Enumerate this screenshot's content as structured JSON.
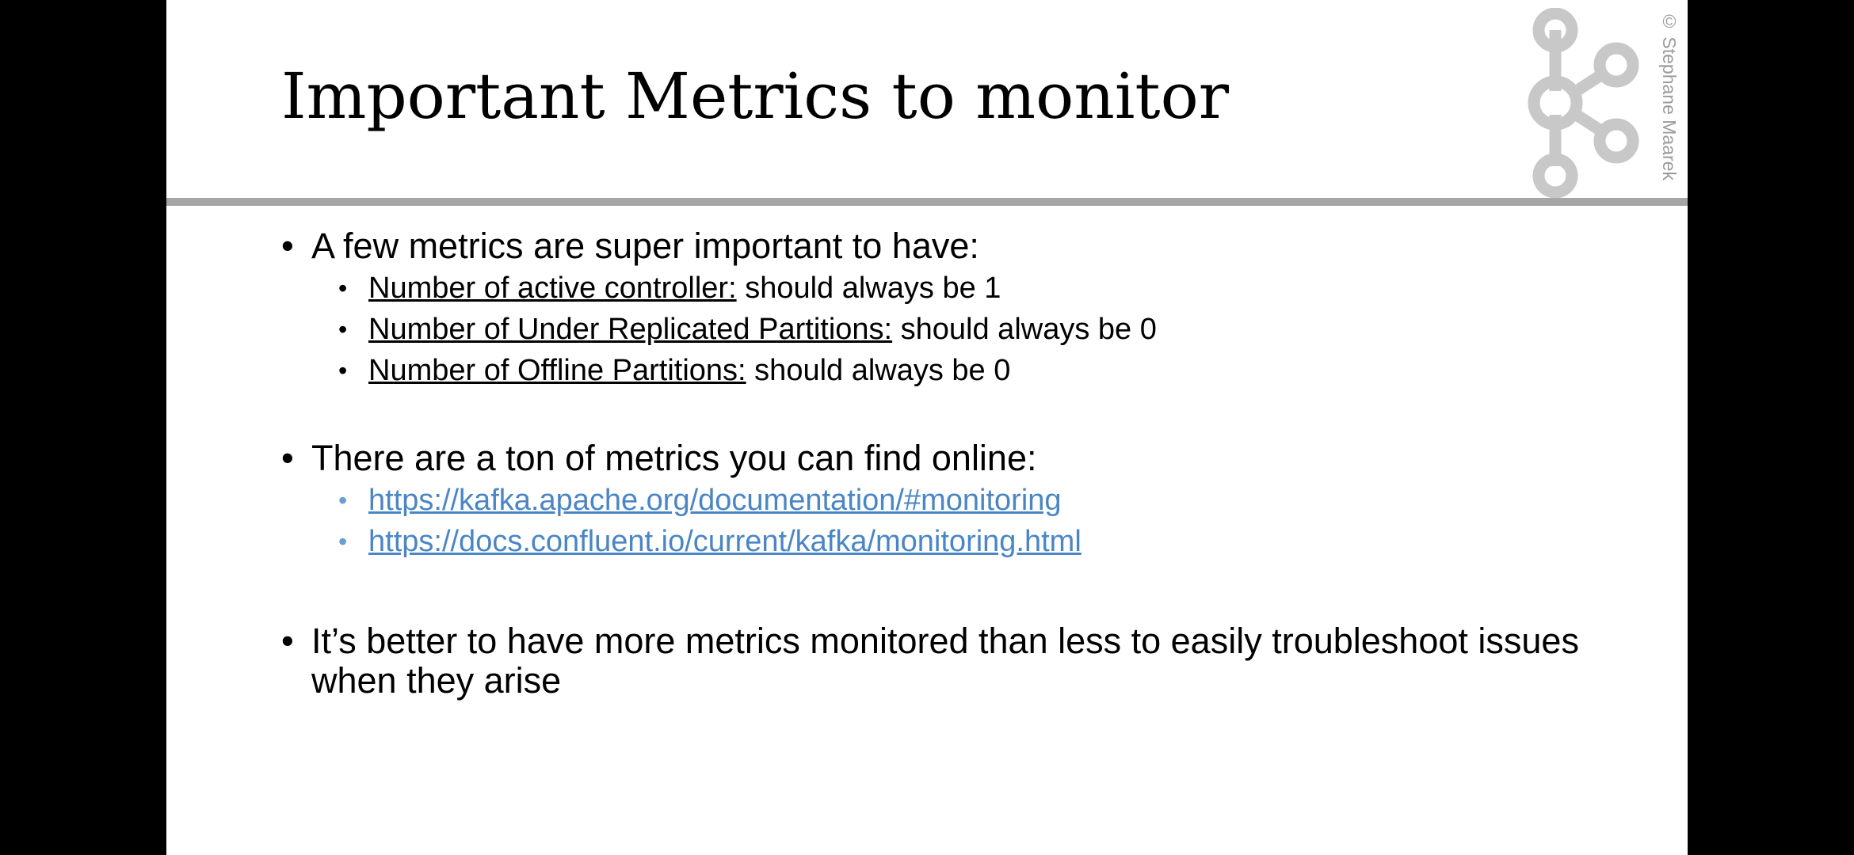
{
  "slide": {
    "title": "Important Metrics to monitor",
    "copyright": "© Stephane Maarek",
    "logo_icon": "kafka-logo-icon"
  },
  "bullets": [
    {
      "text": "A few metrics are super important to have:",
      "items": [
        {
          "term": "Number of active controller:",
          "rest": " should always be 1"
        },
        {
          "term": "Number of Under Replicated Partitions:",
          "rest": " should always be 0"
        },
        {
          "term": "Number of Offline Partitions:",
          "rest": " should always be 0"
        }
      ]
    },
    {
      "text": "There are a ton of metrics you can find online:",
      "links": [
        {
          "label": "https://kafka.apache.org/documentation/#monitoring"
        },
        {
          "label": "https://docs.confluent.io/current/kafka/monitoring.html"
        }
      ]
    },
    {
      "text": "It’s better to have more metrics monitored than less to easily troubleshoot issues when they arise"
    }
  ],
  "colors": {
    "link": "#4a86c5",
    "rule": "#a6a6a6",
    "logo": "#c8c8c8"
  }
}
